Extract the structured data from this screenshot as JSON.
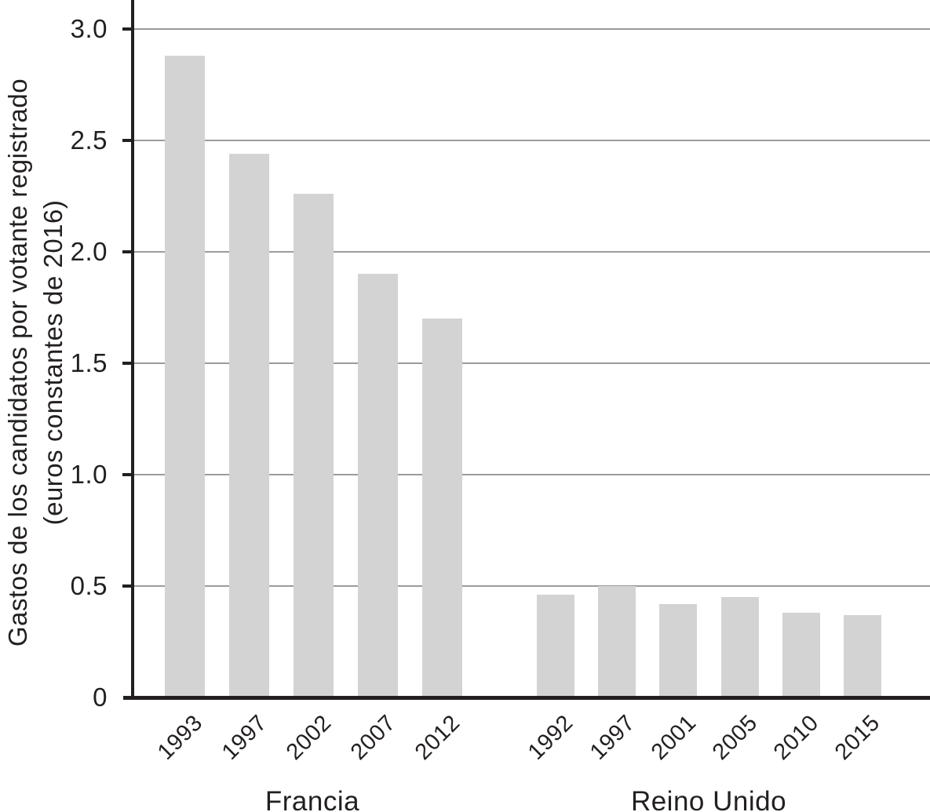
{
  "chart_data": {
    "type": "bar",
    "title": "",
    "ylabel_line1": "Gastos de los candidatos por votante registrado",
    "ylabel_line2": "(euros constantes de 2016)",
    "xlabel": "",
    "ylim": [
      0,
      3.13
    ],
    "yticks": [
      0,
      0.5,
      1.0,
      1.5,
      2.0,
      2.5,
      3.0
    ],
    "ytick_labels": [
      "0",
      "0.5",
      "1.0",
      "1.5",
      "2.0",
      "2.5",
      "3.0"
    ],
    "grid": true,
    "legend": "none",
    "groups": [
      {
        "label": "Francia",
        "categories": [
          "1993",
          "1997",
          "2002",
          "2007",
          "2012"
        ],
        "values": [
          2.88,
          2.44,
          2.26,
          1.9,
          1.7
        ]
      },
      {
        "label": "Reino Unido",
        "categories": [
          "1992",
          "1997",
          "2001",
          "2005",
          "2010",
          "2015"
        ],
        "values": [
          0.46,
          0.5,
          0.42,
          0.45,
          0.38,
          0.37
        ]
      }
    ],
    "colors": {
      "bar": "#d3d3d3",
      "grid": "#9b9b9b",
      "axis": "#231f20",
      "text": "#231f20"
    }
  }
}
